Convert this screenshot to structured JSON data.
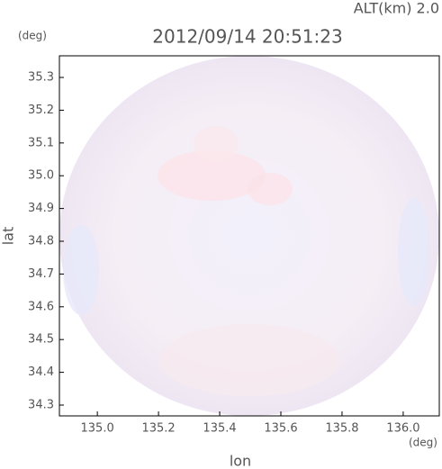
{
  "chart_data": {
    "type": "image",
    "title": "2012/09/14 20:51:23",
    "subtitle": "ALT(km) 2.0",
    "x_label": "lon",
    "x_unit": "(deg)",
    "y_label": "lat",
    "y_unit": "(deg)",
    "xlim": [
      134.876,
      136.118
    ],
    "xticks": [
      {
        "value": 135.0,
        "label": "135.0"
      },
      135.2,
      135.4,
      135.6,
      135.8,
      {
        "value": 136.0,
        "label": "136.0"
      }
    ],
    "ylim": [
      34.267,
      35.366
    ],
    "yticks": [
      34.3,
      34.4,
      34.5,
      34.6,
      34.7,
      34.8,
      34.9,
      {
        "value": 35.0,
        "label": "35.0"
      },
      35.1,
      35.2,
      35.3
    ]
  }
}
